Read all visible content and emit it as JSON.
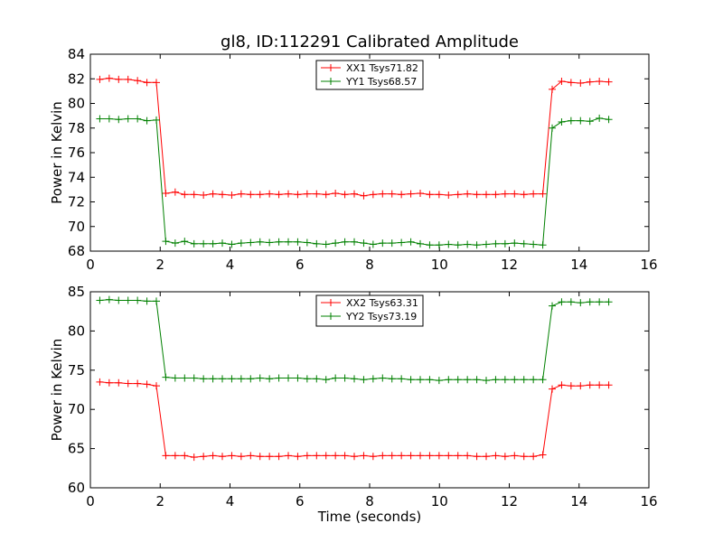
{
  "title": "gl8, ID:112291 Calibrated Amplitude",
  "chart_data": [
    {
      "type": "line",
      "title": "gl8, ID:112291 Calibrated Amplitude",
      "xlabel": "",
      "ylabel": "Power in Kelvin",
      "xlim": [
        0,
        16
      ],
      "ylim": [
        68,
        84
      ],
      "xticks": [
        0,
        2,
        4,
        6,
        8,
        10,
        12,
        14,
        16
      ],
      "yticks": [
        68,
        70,
        72,
        74,
        76,
        78,
        80,
        82,
        84
      ],
      "grid": false,
      "legend_position": "top-center",
      "x": [
        0.27,
        0.54,
        0.81,
        1.08,
        1.35,
        1.62,
        1.89,
        2.16,
        2.43,
        2.7,
        2.97,
        3.24,
        3.51,
        3.78,
        4.05,
        4.32,
        4.59,
        4.86,
        5.13,
        5.4,
        5.67,
        5.94,
        6.21,
        6.48,
        6.75,
        7.02,
        7.29,
        7.56,
        7.83,
        8.1,
        8.37,
        8.64,
        8.91,
        9.18,
        9.45,
        9.72,
        9.99,
        10.26,
        10.53,
        10.8,
        11.07,
        11.34,
        11.61,
        11.88,
        12.15,
        12.42,
        12.69,
        12.96,
        13.23,
        13.5,
        13.77,
        14.04,
        14.31,
        14.58,
        14.85
      ],
      "series": [
        {
          "name": "XX1 Tsys71.82",
          "color": "#ff0000",
          "values": [
            81.95,
            82.05,
            81.95,
            81.95,
            81.85,
            81.7,
            81.7,
            72.7,
            72.8,
            72.6,
            72.6,
            72.55,
            72.65,
            72.6,
            72.55,
            72.65,
            72.6,
            72.6,
            72.65,
            72.6,
            72.65,
            72.6,
            72.65,
            72.65,
            72.6,
            72.7,
            72.6,
            72.65,
            72.5,
            72.6,
            72.65,
            72.65,
            72.6,
            72.65,
            72.7,
            72.6,
            72.6,
            72.55,
            72.6,
            72.65,
            72.6,
            72.6,
            72.6,
            72.65,
            72.65,
            72.6,
            72.65,
            72.65,
            81.15,
            81.8,
            81.7,
            81.65,
            81.75,
            81.8,
            81.75
          ]
        },
        {
          "name": "YY1 Tsys68.57",
          "color": "#008000",
          "values": [
            78.75,
            78.75,
            78.7,
            78.75,
            78.75,
            78.6,
            78.65,
            68.8,
            68.65,
            68.8,
            68.6,
            68.6,
            68.6,
            68.65,
            68.55,
            68.65,
            68.7,
            68.75,
            68.7,
            68.75,
            68.75,
            68.75,
            68.7,
            68.6,
            68.55,
            68.65,
            68.75,
            68.75,
            68.65,
            68.55,
            68.65,
            68.65,
            68.7,
            68.75,
            68.6,
            68.5,
            68.5,
            68.55,
            68.5,
            68.55,
            68.5,
            68.55,
            68.6,
            68.6,
            68.65,
            68.6,
            68.55,
            68.5,
            78.0,
            78.5,
            78.6,
            78.6,
            78.55,
            78.8,
            78.7
          ]
        }
      ]
    },
    {
      "type": "line",
      "title": "",
      "xlabel": "Time (seconds)",
      "ylabel": "Power in Kelvin",
      "xlim": [
        0,
        16
      ],
      "ylim": [
        60,
        85
      ],
      "xticks": [
        0,
        2,
        4,
        6,
        8,
        10,
        12,
        14,
        16
      ],
      "yticks": [
        60,
        65,
        70,
        75,
        80,
        85
      ],
      "grid": false,
      "legend_position": "top-center",
      "x": [
        0.27,
        0.54,
        0.81,
        1.08,
        1.35,
        1.62,
        1.89,
        2.16,
        2.43,
        2.7,
        2.97,
        3.24,
        3.51,
        3.78,
        4.05,
        4.32,
        4.59,
        4.86,
        5.13,
        5.4,
        5.67,
        5.94,
        6.21,
        6.48,
        6.75,
        7.02,
        7.29,
        7.56,
        7.83,
        8.1,
        8.37,
        8.64,
        8.91,
        9.18,
        9.45,
        9.72,
        9.99,
        10.26,
        10.53,
        10.8,
        11.07,
        11.34,
        11.61,
        11.88,
        12.15,
        12.42,
        12.69,
        12.96,
        13.23,
        13.5,
        13.77,
        14.04,
        14.31,
        14.58,
        14.85
      ],
      "series": [
        {
          "name": "XX2 Tsys63.31",
          "color": "#ff0000",
          "values": [
            73.5,
            73.4,
            73.4,
            73.3,
            73.3,
            73.2,
            73.0,
            64.1,
            64.1,
            64.1,
            63.9,
            64.0,
            64.1,
            64.0,
            64.1,
            64.0,
            64.1,
            64.0,
            64.0,
            64.0,
            64.1,
            64.0,
            64.1,
            64.1,
            64.1,
            64.1,
            64.1,
            64.0,
            64.1,
            64.0,
            64.1,
            64.1,
            64.1,
            64.1,
            64.1,
            64.1,
            64.1,
            64.1,
            64.1,
            64.1,
            64.0,
            64.0,
            64.1,
            64.0,
            64.1,
            64.0,
            64.0,
            64.2,
            72.6,
            73.1,
            73.0,
            73.0,
            73.1,
            73.1,
            73.1
          ]
        },
        {
          "name": "YY2 Tsys73.19",
          "color": "#008000",
          "values": [
            83.9,
            84.0,
            83.9,
            83.9,
            83.9,
            83.8,
            83.8,
            74.1,
            74.0,
            74.0,
            74.0,
            73.9,
            73.9,
            73.9,
            73.9,
            73.9,
            73.9,
            74.0,
            73.9,
            74.0,
            74.0,
            74.0,
            73.9,
            73.9,
            73.8,
            74.0,
            74.0,
            73.9,
            73.8,
            73.9,
            74.0,
            73.9,
            73.9,
            73.8,
            73.8,
            73.8,
            73.7,
            73.8,
            73.8,
            73.8,
            73.8,
            73.7,
            73.8,
            73.8,
            73.8,
            73.8,
            73.8,
            73.8,
            83.2,
            83.7,
            83.7,
            83.6,
            83.7,
            83.7,
            83.7
          ]
        }
      ]
    }
  ]
}
